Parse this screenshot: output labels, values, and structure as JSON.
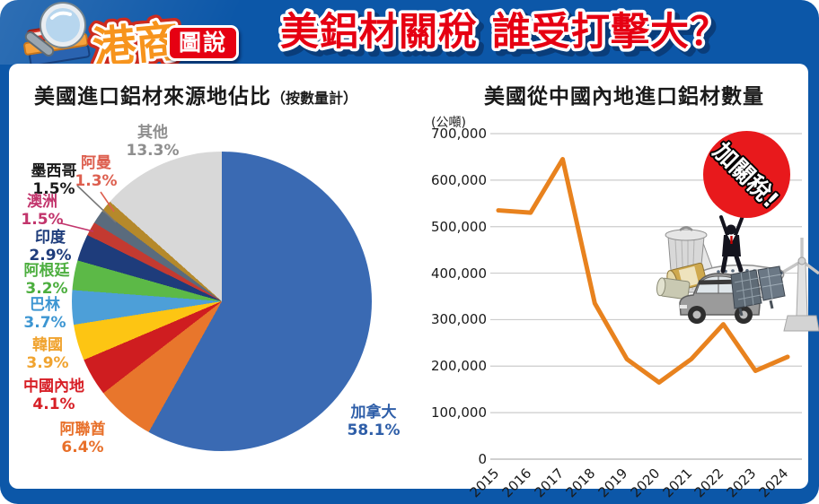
{
  "header": {
    "logo_main": "港商",
    "logo_sub": "圖說",
    "title": "美鋁材關稅 誰受打擊大？"
  },
  "pie_section": {
    "title": "美國進口鋁材來源地佔比",
    "title_suffix": "（按數量計）"
  },
  "line_section": {
    "title": "美國從中國內地進口鋁材數量",
    "unit_label": "(公噸)",
    "badge_label": "加關稅!"
  },
  "colors": {
    "frame_blue": "#0c57a8",
    "headline_red": "#e60012",
    "line_orange": "#e8821e",
    "badge_red": "#e8191c",
    "grid_gray": "#cccccc"
  },
  "chart_data": [
    {
      "type": "pie",
      "title": "美國進口鋁材來源地佔比（按數量計）",
      "start_angle_deg": 0,
      "direction": "clockwise",
      "slices": [
        {
          "label": "加拿大",
          "value": 58.1,
          "pct_text": "58.1%",
          "color": "#3a6ab3",
          "label_color": "#2e5ea8"
        },
        {
          "label": "阿聯酋",
          "value": 6.4,
          "pct_text": "6.4%",
          "color": "#e8762c",
          "label_color": "#e8702a"
        },
        {
          "label": "中國內地",
          "value": 4.1,
          "pct_text": "4.1%",
          "color": "#cf1d20",
          "label_color": "#d71f26"
        },
        {
          "label": "韓國",
          "value": 3.9,
          "pct_text": "3.9%",
          "color": "#fdc513",
          "label_color": "#f0a32f"
        },
        {
          "label": "巴林",
          "value": 3.7,
          "pct_text": "3.7%",
          "color": "#4d9fd8",
          "label_color": "#3d96d2"
        },
        {
          "label": "阿根廷",
          "value": 3.2,
          "pct_text": "3.2%",
          "color": "#5cb947",
          "label_color": "#4cae3e"
        },
        {
          "label": "印度",
          "value": 2.9,
          "pct_text": "2.9%",
          "color": "#1e3c7b",
          "label_color": "#1e3c7b"
        },
        {
          "label": "澳洲",
          "value": 1.5,
          "pct_text": "1.5%",
          "color": "#c33a31",
          "label_color": "#c2356c"
        },
        {
          "label": "墨西哥",
          "value": 1.5,
          "pct_text": "1.5%",
          "color": "#5a6b7d",
          "label_color": "#1a1a1a"
        },
        {
          "label": "阿曼",
          "value": 1.3,
          "pct_text": "1.3%",
          "color": "#b5892b",
          "label_color": "#dd5f4f"
        },
        {
          "label": "其他",
          "value": 13.3,
          "pct_text": "13.3%",
          "color": "#d8d8d8",
          "label_color": "#8e8e8e"
        }
      ]
    },
    {
      "type": "line",
      "title": "美國從中國內地進口鋁材數量",
      "ylabel": "(公噸)",
      "line_color": "#e8821e",
      "ylim": [
        0,
        700000
      ],
      "grid": true,
      "legend": "none",
      "years": [
        "2015",
        "2016",
        "2017",
        "2018",
        "2019",
        "2020",
        "2021",
        "2022",
        "2023",
        "2024"
      ],
      "values": [
        535000,
        530000,
        645000,
        335000,
        215000,
        165000,
        215000,
        290000,
        190000,
        220000
      ],
      "yticks": [
        {
          "value": 700000,
          "label": "700,000"
        },
        {
          "value": 600000,
          "label": "600,000"
        },
        {
          "value": 500000,
          "label": "500,000"
        },
        {
          "value": 400000,
          "label": "400,000"
        },
        {
          "value": 300000,
          "label": "300,000"
        },
        {
          "value": 200000,
          "label": "200,000"
        },
        {
          "value": 100000,
          "label": "100,000"
        },
        {
          "value": 0,
          "label": "0"
        }
      ],
      "annotation": "加關稅!"
    }
  ]
}
